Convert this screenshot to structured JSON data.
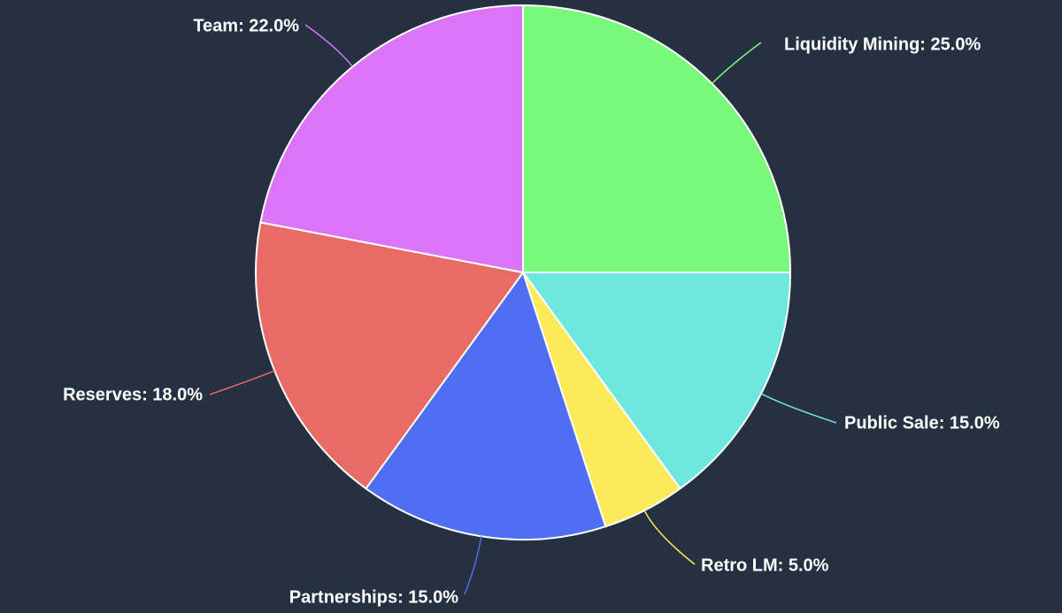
{
  "chart_data": {
    "type": "pie",
    "values": [
      25,
      15,
      5,
      15,
      18,
      22
    ],
    "value_labels": [
      "Liquidity Mining: 25.0%",
      "Public Sale: 15.0%",
      "Retro LM: 5.0%",
      "Partnerships: 15.0%",
      "Reserves: 18.0%",
      "Team: 22.0%"
    ],
    "colors": [
      "#7af87c",
      "#6ee8de",
      "#fdea5a",
      "#4f6ef2",
      "#e96b66",
      "#dc74f8"
    ]
  }
}
